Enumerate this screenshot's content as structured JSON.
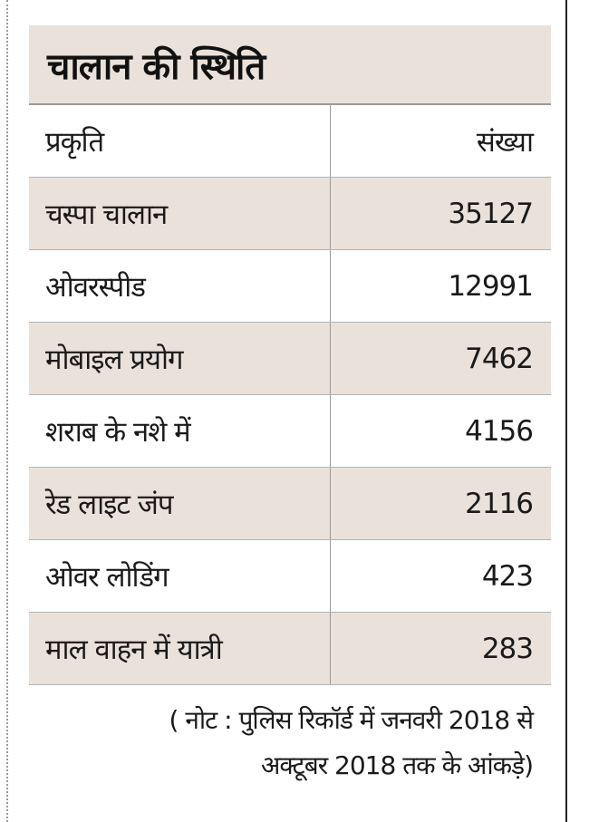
{
  "title": "चालान की स्थिति",
  "table": {
    "header": {
      "label": "प्रकृति",
      "value": "संख्या"
    },
    "rows": [
      {
        "label": "चस्पा चालान",
        "value": "35127"
      },
      {
        "label": "ओवरस्पीड",
        "value": "12991"
      },
      {
        "label": "मोबाइल प्रयोग",
        "value": "7462"
      },
      {
        "label": "शराब के नशे में",
        "value": "4156"
      },
      {
        "label": "रेड लाइट जंप",
        "value": "2116"
      },
      {
        "label": "ओवर लोडिंग",
        "value": "423"
      },
      {
        "label": "माल वाहन में यात्री",
        "value": "283"
      }
    ]
  },
  "note": {
    "line1": "( नोट : पुलिस रिकॉर्ड में जनवरी 2018 से",
    "line2": "अक्टूबर 2018 तक के आंकड़े)"
  },
  "colors": {
    "shade": "#e9e1da",
    "divider": "#9a9a9a"
  }
}
